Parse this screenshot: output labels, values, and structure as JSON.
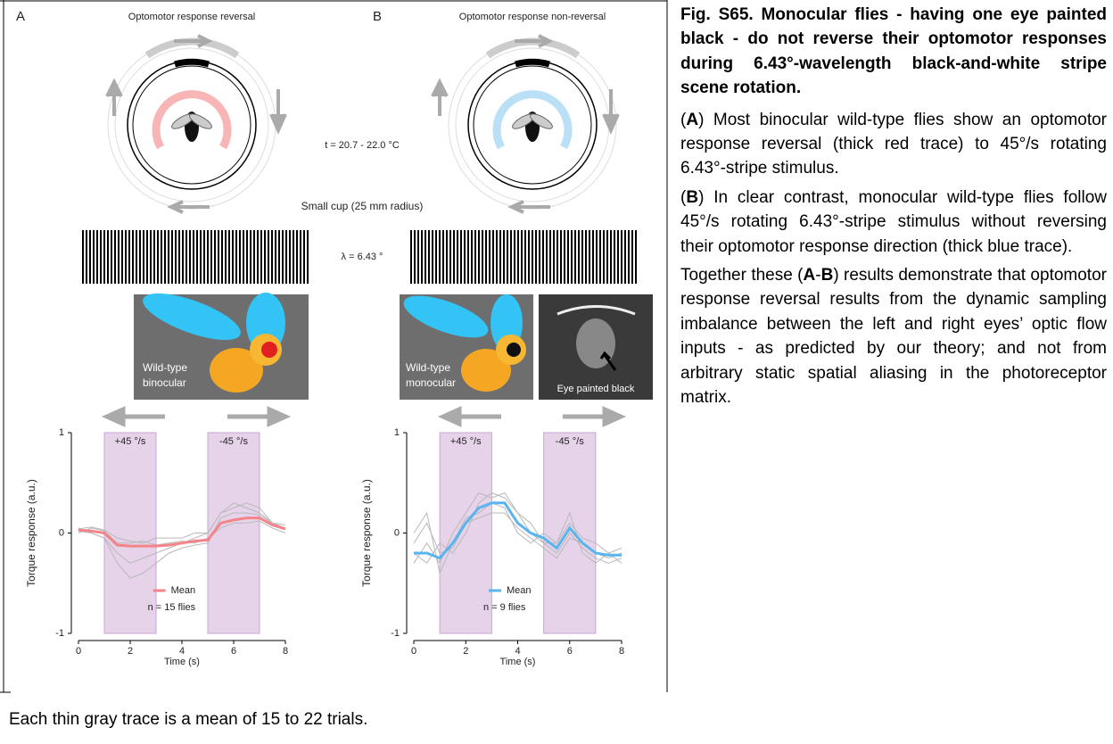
{
  "panels": [
    {
      "letter": "A",
      "title": "Optomotor response reversal",
      "illustration_label": [
        "Wild-type",
        "binocular"
      ],
      "chart": {
        "type": "line",
        "ylabel": "Torque response (a.u.)",
        "xlabel": "Time (s)",
        "xlim": [
          0,
          8
        ],
        "ylim": [
          -1,
          1
        ],
        "xticks": [
          0,
          2,
          4,
          6,
          8
        ],
        "yticks": [
          -1,
          0,
          1
        ],
        "stimuli": [
          {
            "range": [
              1,
              3
            ],
            "label": "+45 °/s"
          },
          {
            "range": [
              5,
              7
            ],
            "label": "-45 °/s"
          }
        ],
        "n_label": "n = 15 flies",
        "x": [
          0,
          0.5,
          1,
          1.5,
          2,
          2.5,
          3,
          3.5,
          4,
          4.5,
          5,
          5.5,
          6,
          6.5,
          7,
          7.5,
          8
        ],
        "series": [
          {
            "name": "Mean",
            "color": "#f4848a",
            "values": [
              0.03,
              0.02,
              0.0,
              -0.12,
              -0.13,
              -0.13,
              -0.13,
              -0.12,
              -0.1,
              -0.08,
              -0.07,
              0.1,
              0.13,
              0.15,
              0.15,
              0.08,
              0.04
            ]
          },
          {
            "color": "#b8b8b8",
            "values": [
              0.05,
              0.0,
              -0.05,
              -0.2,
              -0.3,
              -0.25,
              -0.2,
              -0.15,
              -0.1,
              -0.05,
              0,
              0.2,
              0.25,
              0.3,
              0.25,
              0.1,
              0.05
            ]
          },
          {
            "color": "#b8b8b8",
            "values": [
              0.0,
              0.05,
              0.02,
              -0.1,
              -0.1,
              -0.08,
              -0.12,
              -0.1,
              -0.08,
              -0.1,
              -0.05,
              0.05,
              0.1,
              0.1,
              0.12,
              0.05,
              0.0
            ]
          },
          {
            "color": "#b8b8b8",
            "values": [
              0.02,
              0.0,
              -0.05,
              -0.3,
              -0.45,
              -0.4,
              -0.3,
              -0.2,
              -0.15,
              -0.12,
              -0.1,
              0.15,
              0.2,
              0.2,
              0.18,
              0.1,
              0.08
            ]
          },
          {
            "color": "#b8b8b8",
            "values": [
              0.04,
              0.06,
              0.03,
              -0.05,
              -0.08,
              -0.1,
              -0.05,
              -0.05,
              -0.05,
              0,
              0.0,
              0.2,
              0.3,
              0.25,
              0.2,
              0.1,
              0.05
            ]
          }
        ]
      }
    },
    {
      "letter": "B",
      "title": "Optomotor response non-reversal",
      "illustration_label": [
        "Wild-type",
        "monocular"
      ],
      "photo_label": "Eye painted black",
      "chart": {
        "type": "line",
        "ylabel": "Torque response (a.u.)",
        "xlabel": "Time (s)",
        "xlim": [
          0,
          8
        ],
        "ylim": [
          -1,
          1
        ],
        "xticks": [
          0,
          2,
          4,
          6,
          8
        ],
        "yticks": [
          -1,
          0,
          1
        ],
        "stimuli": [
          {
            "range": [
              1,
              3
            ],
            "label": "+45 °/s"
          },
          {
            "range": [
              5,
              7
            ],
            "label": "-45 °/s"
          }
        ],
        "n_label": "n = 9 flies",
        "x": [
          0,
          0.5,
          1,
          1.5,
          2,
          2.5,
          3,
          3.5,
          4,
          4.5,
          5,
          5.5,
          6,
          6.5,
          7,
          7.5,
          8
        ],
        "series": [
          {
            "name": "Mean",
            "color": "#5ab4f0",
            "values": [
              -0.2,
              -0.2,
              -0.25,
              -0.1,
              0.1,
              0.25,
              0.3,
              0.3,
              0.1,
              0.0,
              -0.05,
              -0.15,
              0.05,
              -0.1,
              -0.2,
              -0.22,
              -0.22
            ]
          },
          {
            "color": "#b8b8b8",
            "values": [
              -0.3,
              -0.1,
              -0.3,
              0.0,
              0.2,
              0.4,
              0.35,
              0.4,
              0.2,
              0.0,
              -0.1,
              -0.2,
              0.0,
              -0.15,
              -0.25,
              -0.3,
              -0.25
            ]
          },
          {
            "color": "#b8b8b8",
            "values": [
              0.0,
              0.2,
              -0.4,
              -0.1,
              0.15,
              0.2,
              0.3,
              0.25,
              0.0,
              -0.1,
              0.0,
              -0.1,
              0.1,
              -0.05,
              -0.1,
              -0.2,
              -0.15
            ]
          },
          {
            "color": "#b8b8b8",
            "values": [
              -0.2,
              -0.3,
              -0.1,
              -0.2,
              0.0,
              0.3,
              0.4,
              0.35,
              0.2,
              0.1,
              -0.1,
              -0.1,
              0.2,
              -0.2,
              -0.3,
              -0.2,
              -0.3
            ]
          },
          {
            "color": "#b8b8b8",
            "values": [
              -0.1,
              0.1,
              -0.2,
              -0.15,
              0.1,
              0.15,
              0.2,
              0.2,
              0.05,
              -0.05,
              -0.15,
              -0.25,
              -0.05,
              -0.1,
              -0.2,
              -0.25,
              -0.2
            ]
          }
        ]
      }
    }
  ],
  "temperature": "t = 20.7 - 22.0 °C",
  "cup": "Small cup  (25 mm radius)",
  "wavelength": "λ = 6.43 °",
  "caption": {
    "title": "Fig. S65. Monocular flies - having one eye painted black - do not reverse their optomotor responses during 6.43°-wavelength black-and-white stripe scene rotation.",
    "paragraphs": [
      [
        {
          "text": "(",
          "bold": false
        },
        {
          "text": "A",
          "bold": true
        },
        {
          "text": ") Most binocular wild-type flies show an optomotor response reversal (thick red trace) to 45°/s rotating 6.43°-stripe stimulus.",
          "bold": false
        }
      ],
      [
        {
          "text": "(",
          "bold": false
        },
        {
          "text": "B",
          "bold": true
        },
        {
          "text": ") In clear contrast, monocular wild-type flies follow 45°/s rotating 6.43°-stripe stimulus without reversing their optomotor response direction (thick blue trace).",
          "bold": false
        }
      ],
      [
        {
          "text": "Together these (",
          "bold": false
        },
        {
          "text": "A",
          "bold": true
        },
        {
          "text": "-",
          "bold": false
        },
        {
          "text": "B",
          "bold": true
        },
        {
          "text": ") results demonstrate that optomotor response reversal results from the dynamic sampling imbalance between the left and right eyes’ optic flow inputs - as predicted by our theory; and not from arbitrary static spatial aliasing in the photoreceptor matrix.",
          "bold": false
        }
      ]
    ]
  },
  "footnote": "Each thin gray trace is a mean of 15 to 22 trials."
}
